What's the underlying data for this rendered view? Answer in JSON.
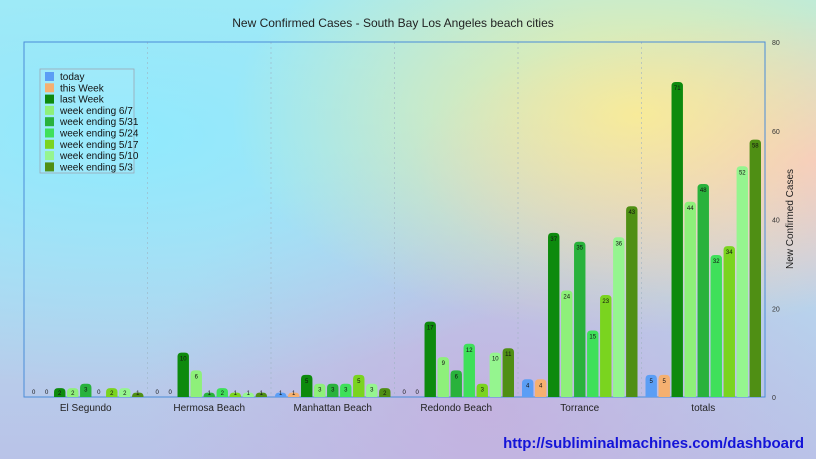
{
  "chart_data": {
    "type": "bar",
    "title": "New Confirmed Cases - South Bay Los Angeles beach cities",
    "xlabel": "",
    "ylabel": "New Confirmed Cases",
    "ylim": [
      0,
      80
    ],
    "yticks": [
      0,
      20,
      40,
      60,
      80
    ],
    "y_axis_side": "right",
    "grid": "vertical dashed",
    "legend_position": "top-left",
    "categories": [
      "El Segundo",
      "Hermosa Beach",
      "Manhattan Beach",
      "Redondo Beach",
      "Torrance",
      "totals"
    ],
    "series": [
      {
        "name": "today",
        "color": "#5b9ef5",
        "values": [
          0,
          0,
          1,
          0,
          4,
          5
        ]
      },
      {
        "name": "this Week",
        "color": "#f5b070",
        "values": [
          0,
          0,
          1,
          0,
          4,
          5
        ]
      },
      {
        "name": "last Week",
        "color": "#0d8a0d",
        "values": [
          2,
          10,
          5,
          17,
          37,
          71
        ]
      },
      {
        "name": "week ending 6/7",
        "color": "#8ef07a",
        "values": [
          2,
          6,
          3,
          9,
          24,
          44
        ]
      },
      {
        "name": "week ending 5/31",
        "color": "#29b23c",
        "values": [
          3,
          1,
          3,
          6,
          35,
          48
        ]
      },
      {
        "name": "week ending 5/24",
        "color": "#3fe05a",
        "values": [
          0,
          2,
          3,
          12,
          15,
          32
        ]
      },
      {
        "name": "week ending 5/17",
        "color": "#7ad41f",
        "values": [
          2,
          1,
          5,
          3,
          23,
          34
        ]
      },
      {
        "name": "week ending 5/10",
        "color": "#95f58f",
        "values": [
          2,
          1,
          3,
          10,
          36,
          52
        ]
      },
      {
        "name": "week ending 5/3",
        "color": "#4f8f14",
        "values": [
          1,
          1,
          2,
          11,
          43,
          58
        ]
      }
    ]
  },
  "footer": {
    "link_text": "http://subliminalmachines.com/dashboard"
  }
}
